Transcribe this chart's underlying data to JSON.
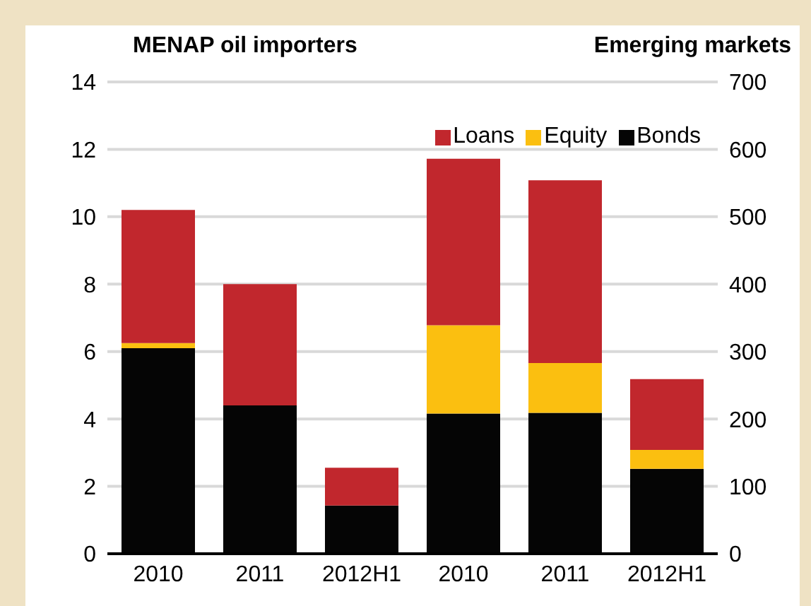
{
  "chart_data": {
    "type": "bar",
    "stacked": true,
    "ylabel": "MENAP oil importers",
    "y2label": "Emerging markets",
    "categories": [
      "2010",
      "2011",
      "2012H1",
      "2010",
      "2011",
      "2012H1"
    ],
    "series": [
      {
        "name": "Bonds",
        "color": "#050505",
        "axis": "y",
        "values": [
          6.1,
          4.4,
          1.43,
          null,
          null,
          null
        ]
      },
      {
        "name": "Equity",
        "color": "#fbbf10",
        "axis": "y",
        "values": [
          0.15,
          null,
          null,
          null,
          null,
          null
        ]
      },
      {
        "name": "Loans",
        "color": "#c1272d",
        "axis": "y",
        "values": [
          3.95,
          3.6,
          1.12,
          null,
          null,
          null
        ]
      },
      {
        "color": "#050505",
        "axis": "y2",
        "values": [
          null,
          null,
          null,
          208,
          209,
          126
        ]
      },
      {
        "color": "#fbbf10",
        "axis": "y2",
        "values": [
          null,
          null,
          null,
          131,
          74,
          28
        ]
      },
      {
        "color": "#c1272d",
        "axis": "y2",
        "values": [
          null,
          null,
          null,
          247,
          271,
          105
        ]
      }
    ],
    "ylim": [
      0,
      14
    ],
    "yticks": [
      0,
      2,
      4,
      6,
      8,
      10,
      12,
      14
    ],
    "y2lim": [
      0,
      700
    ],
    "y2ticks": [
      0,
      100,
      200,
      300,
      400,
      500,
      600,
      700
    ],
    "grid": "y",
    "legend": "top right"
  }
}
